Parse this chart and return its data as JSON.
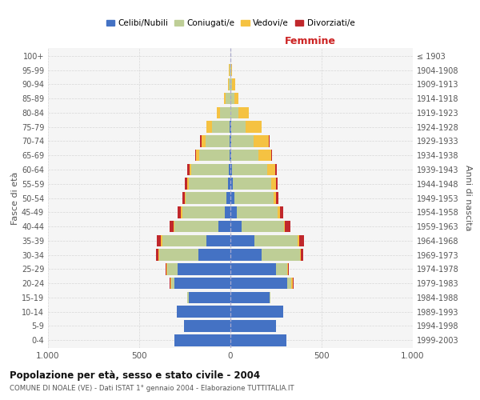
{
  "age_groups": [
    "0-4",
    "5-9",
    "10-14",
    "15-19",
    "20-24",
    "25-29",
    "30-34",
    "35-39",
    "40-44",
    "45-49",
    "50-54",
    "55-59",
    "60-64",
    "65-69",
    "70-74",
    "75-79",
    "80-84",
    "85-89",
    "90-94",
    "95-99",
    "100+"
  ],
  "birth_years": [
    "1999-2003",
    "1994-1998",
    "1989-1993",
    "1984-1988",
    "1979-1983",
    "1974-1978",
    "1969-1973",
    "1964-1968",
    "1959-1963",
    "1954-1958",
    "1949-1953",
    "1944-1948",
    "1939-1943",
    "1934-1938",
    "1929-1933",
    "1924-1928",
    "1919-1923",
    "1914-1918",
    "1909-1913",
    "1904-1908",
    "≤ 1903"
  ],
  "male": {
    "celibi": [
      305,
      255,
      295,
      230,
      305,
      290,
      175,
      130,
      65,
      30,
      20,
      15,
      10,
      5,
      5,
      5,
      0,
      0,
      0,
      0,
      0
    ],
    "coniugati": [
      0,
      0,
      0,
      5,
      20,
      55,
      215,
      245,
      240,
      235,
      225,
      215,
      205,
      165,
      130,
      95,
      55,
      25,
      10,
      5,
      2
    ],
    "vedovi": [
      0,
      0,
      0,
      0,
      5,
      5,
      5,
      5,
      5,
      5,
      5,
      5,
      10,
      20,
      25,
      30,
      20,
      10,
      5,
      2,
      0
    ],
    "divorziati": [
      0,
      0,
      0,
      0,
      5,
      5,
      15,
      25,
      25,
      20,
      15,
      15,
      10,
      5,
      5,
      2,
      0,
      0,
      0,
      0,
      0
    ]
  },
  "female": {
    "nubili": [
      305,
      250,
      290,
      215,
      310,
      250,
      170,
      130,
      60,
      35,
      20,
      15,
      10,
      5,
      5,
      5,
      0,
      0,
      0,
      0,
      0
    ],
    "coniugate": [
      0,
      0,
      0,
      5,
      25,
      60,
      210,
      240,
      235,
      225,
      215,
      210,
      190,
      150,
      120,
      80,
      45,
      20,
      10,
      4,
      2
    ],
    "vedove": [
      0,
      0,
      0,
      0,
      5,
      5,
      5,
      5,
      5,
      10,
      15,
      25,
      45,
      70,
      85,
      85,
      55,
      25,
      15,
      5,
      0
    ],
    "divorziate": [
      0,
      0,
      0,
      0,
      5,
      5,
      15,
      30,
      30,
      20,
      15,
      10,
      10,
      5,
      5,
      2,
      0,
      0,
      0,
      0,
      0
    ]
  },
  "colors": {
    "celibi_nubili": "#4472C4",
    "coniugati_e": "#BECE96",
    "vedovi_e": "#F5C242",
    "divorziati_e": "#C0282C"
  },
  "title": "Popolazione per età, sesso e stato civile - 2004",
  "subtitle": "COMUNE DI NOALE (VE) - Dati ISTAT 1° gennaio 2004 - Elaborazione TUTTITALIA.IT",
  "xlabel_right": "Femmine",
  "ylabel_left": "Fasce di età",
  "ylabel_right": "Anni di nascita",
  "xlim": 1000,
  "background_color": "#ffffff",
  "grid_color": "#cccccc"
}
